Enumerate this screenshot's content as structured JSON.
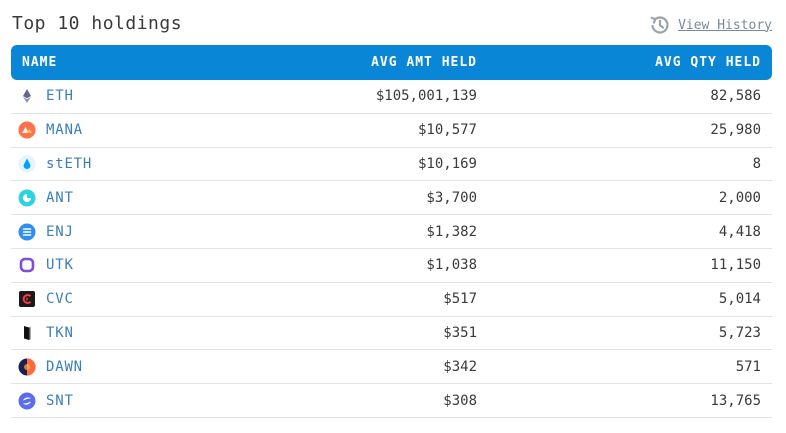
{
  "header": {
    "title": "Top 10 holdings",
    "history_label": "View History",
    "history_icon": "history-icon"
  },
  "table": {
    "columns": [
      "NAME",
      "AVG AMT HELD",
      "AVG QTY HELD"
    ],
    "rows": [
      {
        "symbol": "ETH",
        "amount": "$105,001,139",
        "qty": "82,586",
        "icon": "eth-icon"
      },
      {
        "symbol": "MANA",
        "amount": "$10,577",
        "qty": "25,980",
        "icon": "mana-icon"
      },
      {
        "symbol": "stETH",
        "amount": "$10,169",
        "qty": "8",
        "icon": "steth-icon"
      },
      {
        "symbol": "ANT",
        "amount": "$3,700",
        "qty": "2,000",
        "icon": "ant-icon"
      },
      {
        "symbol": "ENJ",
        "amount": "$1,382",
        "qty": "4,418",
        "icon": "enj-icon"
      },
      {
        "symbol": "UTK",
        "amount": "$1,038",
        "qty": "11,150",
        "icon": "utk-icon"
      },
      {
        "symbol": "CVC",
        "amount": "$517",
        "qty": "5,014",
        "icon": "cvc-icon"
      },
      {
        "symbol": "TKN",
        "amount": "$351",
        "qty": "5,723",
        "icon": "tkn-icon"
      },
      {
        "symbol": "DAWN",
        "amount": "$342",
        "qty": "571",
        "icon": "dawn-icon"
      },
      {
        "symbol": "SNT",
        "amount": "$308",
        "qty": "13,765",
        "icon": "snt-icon"
      }
    ]
  },
  "colors": {
    "header_bg": "#0a86d6",
    "link": "#3a7fb8"
  }
}
